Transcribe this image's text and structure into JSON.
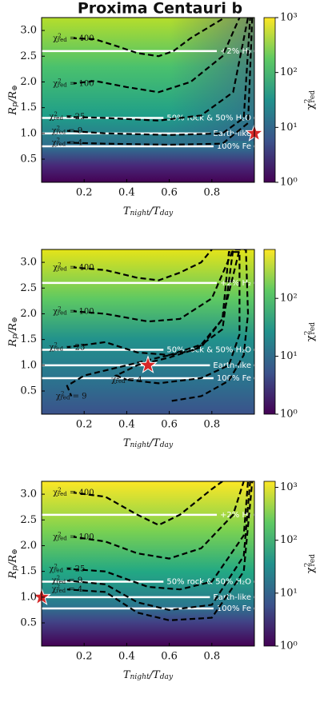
{
  "chart_data": [
    {
      "type": "contour",
      "title": "Proxima Centauri b",
      "x_label": [
        {
          "text": "T"
        },
        {
          "text": "night",
          "script": "sub"
        },
        {
          "text": "/T"
        },
        {
          "text": "day",
          "script": "sub"
        }
      ],
      "y_label": [
        {
          "text": "R"
        },
        {
          "text": "p",
          "script": "sub"
        },
        {
          "text": "/R"
        },
        {
          "text": "⊕",
          "script": "sub"
        }
      ],
      "colorbar_label": [
        {
          "text": "χ"
        },
        {
          "text": "2",
          "script": "sup"
        },
        {
          "text": "red",
          "script": "sub"
        }
      ],
      "xlim": [
        0,
        1
      ],
      "xticks": [
        0.2,
        0.4,
        0.6,
        0.8
      ],
      "ylim": [
        0.05,
        3.25
      ],
      "yticks": [
        0.5,
        {
          "value": 1,
          "label": "1.0"
        },
        1.5,
        {
          "value": 2,
          "label": "2.0"
        },
        2.5,
        {
          "value": 3,
          "label": "3.0"
        }
      ],
      "clim": [
        1,
        1000
      ],
      "log_colorbar": true,
      "cticks": [
        {
          "value": 1,
          "label": "10⁰"
        },
        {
          "value": 10,
          "label": "10¹"
        },
        {
          "value": 100,
          "label": "10²"
        },
        {
          "value": 1000,
          "label": "10³"
        }
      ],
      "contours": [
        {
          "label": [
            {
              "text": "χ"
            },
            {
              "text": "2",
              "script": "sup"
            },
            {
              "text": "red",
              "script": "sub"
            },
            {
              "text": " = 400"
            }
          ],
          "x": [
            0.15,
            0.25,
            0.35,
            0.45,
            0.55,
            0.62,
            0.7,
            0.8,
            0.86
          ],
          "y": [
            2.85,
            2.83,
            2.7,
            2.56,
            2.5,
            2.6,
            2.85,
            3.1,
            3.25
          ]
        },
        {
          "label": [
            {
              "text": "χ"
            },
            {
              "text": "2",
              "script": "sup"
            },
            {
              "text": "red",
              "script": "sub"
            },
            {
              "text": " = 100"
            }
          ],
          "x": [
            0.15,
            0.25,
            0.4,
            0.55,
            0.7,
            0.85,
            0.93
          ],
          "y": [
            1.97,
            2.02,
            1.9,
            1.8,
            2.0,
            2.5,
            3.25
          ]
        },
        {
          "label": [
            {
              "text": "χ"
            },
            {
              "text": "2",
              "script": "sup"
            },
            {
              "text": "red",
              "script": "sub"
            },
            {
              "text": " = 25"
            }
          ],
          "x": [
            0.12,
            0.3,
            0.55,
            0.75,
            0.9,
            0.97
          ],
          "y": [
            1.32,
            1.3,
            1.25,
            1.35,
            1.8,
            3.25
          ]
        },
        {
          "label": [
            {
              "text": "χ"
            },
            {
              "text": "2",
              "script": "sup"
            },
            {
              "text": "red",
              "script": "sub"
            },
            {
              "text": " = 9"
            }
          ],
          "x": [
            0.12,
            0.3,
            0.6,
            0.85,
            0.95,
            0.98
          ],
          "y": [
            1.05,
            1.0,
            0.97,
            1.0,
            1.3,
            3.25
          ]
        },
        {
          "label": [
            {
              "text": "χ"
            },
            {
              "text": "2",
              "script": "sup"
            },
            {
              "text": "red",
              "script": "sub"
            },
            {
              "text": " = 4"
            }
          ],
          "x": [
            0.12,
            0.3,
            0.6,
            0.85,
            0.97,
            0.99
          ],
          "y": [
            0.82,
            0.8,
            0.78,
            0.8,
            1.2,
            3.25
          ]
        }
      ],
      "reference_lines": [
        {
          "y": 2.6,
          "label": "+2% H₂"
        },
        {
          "y": 1.3,
          "label": "50% rock & 50% H₂O"
        },
        {
          "y": 1.0,
          "label": "Earth-like"
        },
        {
          "y": 0.75,
          "label": "100% Fe"
        }
      ],
      "star": {
        "x": 1.0,
        "y": 1.0,
        "color": "#d62728"
      }
    },
    {
      "type": "contour",
      "x_label": [
        {
          "text": "T"
        },
        {
          "text": "night",
          "script": "sub"
        },
        {
          "text": "/T"
        },
        {
          "text": "day",
          "script": "sub"
        }
      ],
      "y_label": [
        {
          "text": "R"
        },
        {
          "text": "p",
          "script": "sub"
        },
        {
          "text": "/R"
        },
        {
          "text": "⊕",
          "script": "sub"
        }
      ],
      "colorbar_label": [
        {
          "text": "χ"
        },
        {
          "text": "2",
          "script": "sup"
        },
        {
          "text": "red",
          "script": "sub"
        }
      ],
      "xlim": [
        0,
        1
      ],
      "xticks": [
        0.2,
        0.4,
        0.6,
        0.8
      ],
      "ylim": [
        0.05,
        3.25
      ],
      "yticks": [
        0.5,
        {
          "value": 1,
          "label": "1.0"
        },
        1.5,
        {
          "value": 2,
          "label": "2.0"
        },
        2.5,
        {
          "value": 3,
          "label": "3.0"
        }
      ],
      "clim": [
        1,
        700
      ],
      "log_colorbar": true,
      "cticks": [
        {
          "value": 1,
          "label": "10⁰"
        },
        {
          "value": 10,
          "label": "10¹"
        },
        {
          "value": 100,
          "label": "10²"
        }
      ],
      "contours": [
        {
          "label": [
            {
              "text": "χ"
            },
            {
              "text": "2",
              "script": "sup"
            },
            {
              "text": "red",
              "script": "sub"
            },
            {
              "text": " = 400"
            }
          ],
          "x": [
            0.15,
            0.3,
            0.45,
            0.55,
            0.65,
            0.75,
            0.8
          ],
          "y": [
            2.9,
            2.85,
            2.7,
            2.65,
            2.8,
            3.0,
            3.25
          ]
        },
        {
          "label": [
            {
              "text": "χ"
            },
            {
              "text": "2",
              "script": "sup"
            },
            {
              "text": "red",
              "script": "sub"
            },
            {
              "text": " = 100"
            }
          ],
          "x": [
            0.15,
            0.3,
            0.5,
            0.65,
            0.8,
            0.9
          ],
          "y": [
            2.05,
            2.0,
            1.85,
            1.9,
            2.3,
            3.25
          ]
        },
        {
          "label": [
            {
              "text": "χ"
            },
            {
              "text": "2",
              "script": "sup"
            },
            {
              "text": "red",
              "script": "sub"
            },
            {
              "text": " = 25"
            }
          ],
          "x": [
            0.12,
            0.3,
            0.45,
            0.6,
            0.75,
            0.85,
            0.93
          ],
          "y": [
            1.35,
            1.45,
            1.25,
            1.2,
            1.4,
            1.9,
            3.25
          ]
        },
        {
          "label": [
            {
              "text": "χ"
            },
            {
              "text": "2",
              "script": "sup"
            },
            {
              "text": "red",
              "script": "sub"
            },
            {
              "text": " = 9"
            }
          ],
          "x": [
            0.14,
            0.12,
            0.2,
            0.35,
            0.55,
            0.72,
            0.85,
            0.9,
            0.96,
            0.97,
            0.95,
            0.88,
            0.75,
            0.6
          ],
          "y": [
            0.4,
            0.6,
            0.8,
            0.95,
            1.15,
            1.3,
            1.7,
            3.25,
            3.25,
            2.0,
            1.2,
            0.7,
            0.4,
            0.3
          ]
        },
        {
          "label": [
            {
              "text": "χ"
            },
            {
              "text": "2",
              "script": "sup"
            },
            {
              "text": "red",
              "script": "sub"
            },
            {
              "text": " = 4"
            }
          ],
          "x": [
            0.4,
            0.35,
            0.45,
            0.6,
            0.75,
            0.85,
            0.88,
            0.93,
            0.93,
            0.88,
            0.75,
            0.55,
            0.4
          ],
          "y": [
            0.72,
            0.8,
            1.0,
            1.15,
            1.35,
            1.9,
            3.2,
            3.2,
            1.6,
            1.0,
            0.75,
            0.65,
            0.72
          ]
        }
      ],
      "reference_lines": [
        {
          "y": 2.6,
          "label": "+2% H₂"
        },
        {
          "y": 1.3,
          "label": "50% rock & 50% H₂O"
        },
        {
          "y": 1.0,
          "label": "Earth-like"
        },
        {
          "y": 0.75,
          "label": "100% Fe"
        }
      ],
      "star": {
        "x": 0.5,
        "y": 1.0,
        "color": "#d62728"
      }
    },
    {
      "type": "contour",
      "x_label": [
        {
          "text": "T"
        },
        {
          "text": "night",
          "script": "sub"
        },
        {
          "text": "/T"
        },
        {
          "text": "day",
          "script": "sub"
        }
      ],
      "y_label": [
        {
          "text": "R"
        },
        {
          "text": "p",
          "script": "sub"
        },
        {
          "text": "/R"
        },
        {
          "text": "⊕",
          "script": "sub"
        }
      ],
      "colorbar_label": [
        {
          "text": "χ"
        },
        {
          "text": "2",
          "script": "sup"
        },
        {
          "text": "red",
          "script": "sub"
        }
      ],
      "xlim": [
        0,
        1
      ],
      "xticks": [
        0.2,
        0.4,
        0.6,
        0.8
      ],
      "ylim": [
        0.05,
        3.25
      ],
      "yticks": [
        0.5,
        {
          "value": 1,
          "label": "1.0"
        },
        1.5,
        {
          "value": 2,
          "label": "2.0"
        },
        2.5,
        {
          "value": 3,
          "label": "3.0"
        }
      ],
      "clim": [
        1,
        1300
      ],
      "log_colorbar": true,
      "cticks": [
        {
          "value": 1,
          "label": "10⁰"
        },
        {
          "value": 10,
          "label": "10¹"
        },
        {
          "value": 100,
          "label": "10²"
        },
        {
          "value": 1000,
          "label": "10³"
        }
      ],
      "contours": [
        {
          "label": [
            {
              "text": "χ"
            },
            {
              "text": "2",
              "script": "sup"
            },
            {
              "text": "red",
              "script": "sub"
            },
            {
              "text": " = 400"
            }
          ],
          "x": [
            0.15,
            0.3,
            0.45,
            0.55,
            0.65,
            0.8,
            0.85
          ],
          "y": [
            3.03,
            2.95,
            2.6,
            2.4,
            2.6,
            3.1,
            3.25
          ]
        },
        {
          "label": [
            {
              "text": "χ"
            },
            {
              "text": "2",
              "script": "sup"
            },
            {
              "text": "red",
              "script": "sub"
            },
            {
              "text": " = 100"
            }
          ],
          "x": [
            0.15,
            0.3,
            0.45,
            0.6,
            0.75,
            0.9,
            0.95
          ],
          "y": [
            2.17,
            2.08,
            1.85,
            1.75,
            1.95,
            2.6,
            3.25
          ]
        },
        {
          "label": [
            {
              "text": "χ"
            },
            {
              "text": "2",
              "script": "sup"
            },
            {
              "text": "red",
              "script": "sub"
            },
            {
              "text": " = 25"
            }
          ],
          "x": [
            0.12,
            0.3,
            0.5,
            0.65,
            0.8,
            0.95,
            0.97
          ],
          "y": [
            1.55,
            1.5,
            1.2,
            1.15,
            1.3,
            2.2,
            3.25
          ]
        },
        {
          "label": [
            {
              "text": "χ"
            },
            {
              "text": "2",
              "script": "sup"
            },
            {
              "text": "red",
              "script": "sub"
            },
            {
              "text": " = 9"
            }
          ],
          "x": [
            0.12,
            0.3,
            0.45,
            0.6,
            0.8,
            0.95,
            0.98
          ],
          "y": [
            1.32,
            1.25,
            0.9,
            0.75,
            0.85,
            1.8,
            3.25
          ]
        },
        {
          "label": [
            {
              "text": "χ"
            },
            {
              "text": "2",
              "script": "sup"
            },
            {
              "text": "red",
              "script": "sub"
            },
            {
              "text": " = 4"
            }
          ],
          "x": [
            0.12,
            0.3,
            0.45,
            0.6,
            0.8,
            0.95,
            0.99
          ],
          "y": [
            1.15,
            1.1,
            0.7,
            0.55,
            0.6,
            1.5,
            3.25
          ]
        }
      ],
      "reference_lines": [
        {
          "y": 2.6,
          "label": "+2% H₂"
        },
        {
          "y": 1.3,
          "label": "50% rock & 50% H₂O"
        },
        {
          "y": 1.0,
          "label": "Earth-like"
        },
        {
          "y": 0.78,
          "label": "100% Fe"
        }
      ],
      "star": {
        "x": 0.0,
        "y": 1.0,
        "color": "#d62728"
      }
    }
  ]
}
